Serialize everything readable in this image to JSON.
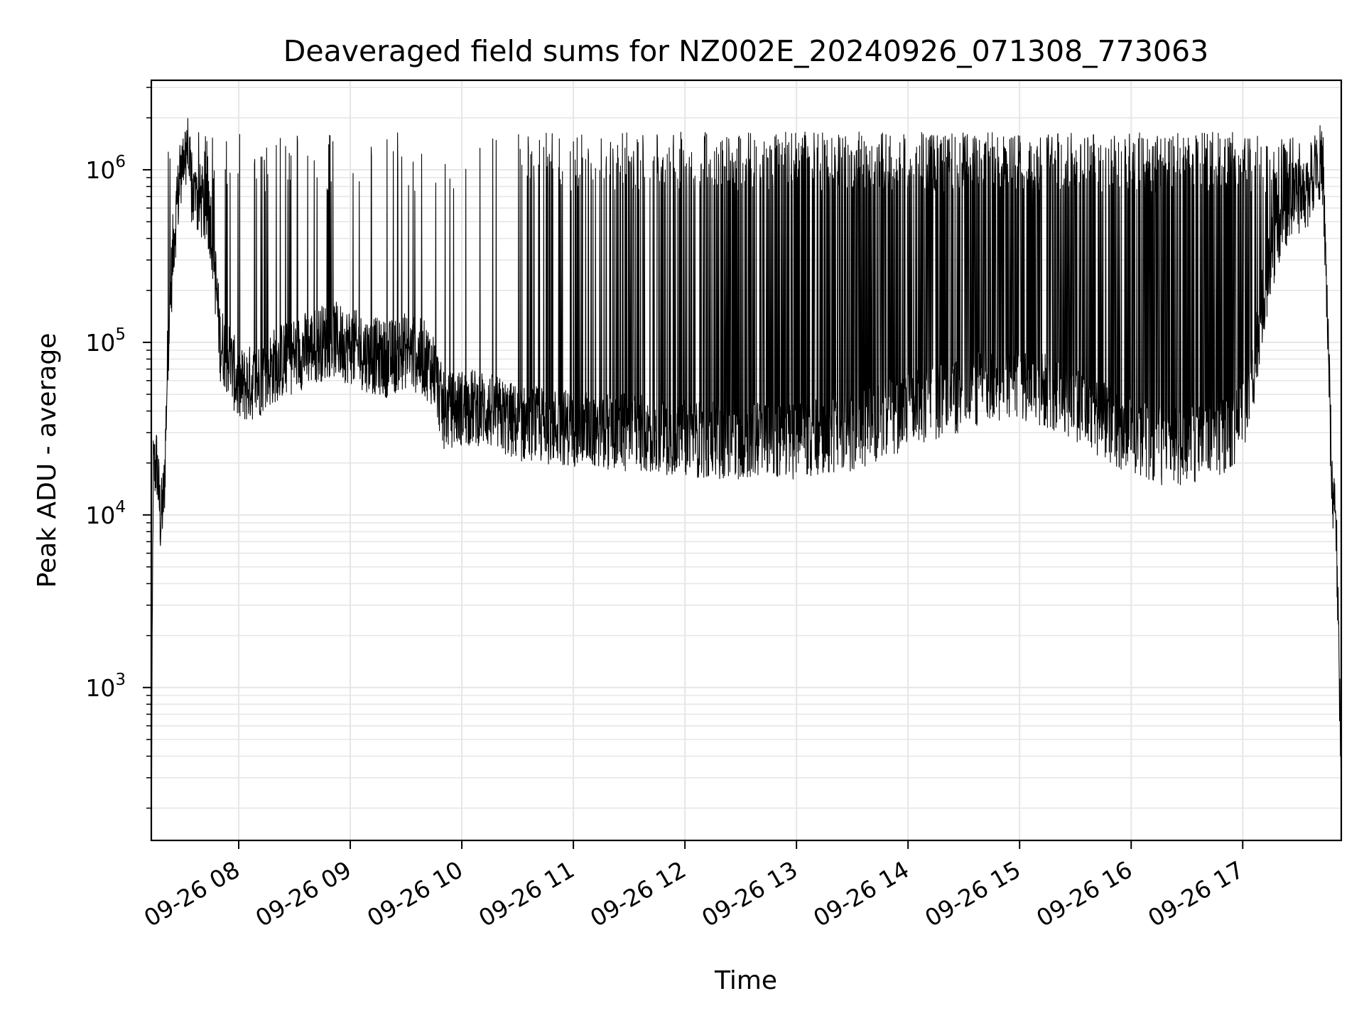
{
  "chart_data": {
    "type": "line",
    "title": "Deaveraged field sums for NZ002E_20240926_071308_773063",
    "xlabel": "Time",
    "ylabel": "Peak ADU - average",
    "yscale": "log",
    "ylim": [
      130,
      3300000
    ],
    "xlim": [
      "09-26 07:13",
      "09-26 17:53"
    ],
    "grid": true,
    "line_color": "#000000",
    "grid_color": "#e6e6e6",
    "x_ticks": [
      "09-26 08",
      "09-26 09",
      "09-26 10",
      "09-26 11",
      "09-26 12",
      "09-26 13",
      "09-26 14",
      "09-26 15",
      "09-26 16",
      "09-26 17"
    ],
    "y_ticks": [
      {
        "base": "10",
        "exp": "3",
        "value": 1000
      },
      {
        "base": "10",
        "exp": "4",
        "value": 10000
      },
      {
        "base": "10",
        "exp": "5",
        "value": 100000
      },
      {
        "base": "10",
        "exp": "6",
        "value": 1000000
      }
    ],
    "series": [
      {
        "baseline": [
          [
            "07:13",
            130
          ],
          [
            "07:14",
            18000
          ],
          [
            "07:16",
            20000
          ],
          [
            "07:18",
            9000
          ],
          [
            "07:20",
            14000
          ],
          [
            "07:22",
            100000
          ],
          [
            "07:25",
            400000
          ],
          [
            "07:28",
            800000
          ],
          [
            "07:32",
            1500000
          ],
          [
            "07:35",
            700000
          ],
          [
            "07:40",
            650000
          ],
          [
            "07:45",
            500000
          ],
          [
            "07:48",
            200000
          ],
          [
            "07:50",
            100000
          ],
          [
            "07:55",
            80000
          ],
          [
            "08:00",
            55000
          ],
          [
            "08:10",
            60000
          ],
          [
            "08:20",
            75000
          ],
          [
            "08:30",
            85000
          ],
          [
            "08:40",
            95000
          ],
          [
            "08:50",
            105000
          ],
          [
            "09:00",
            95000
          ],
          [
            "09:10",
            85000
          ],
          [
            "09:20",
            80000
          ],
          [
            "09:30",
            90000
          ],
          [
            "09:40",
            80000
          ],
          [
            "09:45",
            70000
          ],
          [
            "09:50",
            40000
          ],
          [
            "10:00",
            42000
          ],
          [
            "10:10",
            42000
          ],
          [
            "10:20",
            38000
          ],
          [
            "10:30",
            34000
          ],
          [
            "10:45",
            33000
          ],
          [
            "11:00",
            32000
          ],
          [
            "11:15",
            31000
          ],
          [
            "11:30",
            30000
          ],
          [
            "11:45",
            29000
          ],
          [
            "12:00",
            28000
          ],
          [
            "12:15",
            27000
          ],
          [
            "12:30",
            27000
          ],
          [
            "12:45",
            27000
          ],
          [
            "13:00",
            27000
          ],
          [
            "13:15",
            28000
          ],
          [
            "13:30",
            30000
          ],
          [
            "13:45",
            35000
          ],
          [
            "14:00",
            40000
          ],
          [
            "14:15",
            45000
          ],
          [
            "14:30",
            50000
          ],
          [
            "14:45",
            60000
          ],
          [
            "15:00",
            58000
          ],
          [
            "15:15",
            52000
          ],
          [
            "15:30",
            45000
          ],
          [
            "15:45",
            35000
          ],
          [
            "16:00",
            28000
          ],
          [
            "16:15",
            25000
          ],
          [
            "16:30",
            25000
          ],
          [
            "16:45",
            27000
          ],
          [
            "17:00",
            35000
          ],
          [
            "17:05",
            60000
          ],
          [
            "17:10",
            150000
          ],
          [
            "17:15",
            300000
          ],
          [
            "17:20",
            500000
          ],
          [
            "17:25",
            650000
          ],
          [
            "17:30",
            700000
          ],
          [
            "17:36",
            800000
          ],
          [
            "17:40",
            1200000
          ],
          [
            "17:43",
            1000000
          ],
          [
            "17:46",
            100000
          ],
          [
            "17:48",
            14000
          ],
          [
            "17:50",
            12000
          ],
          [
            "17:52",
            1000
          ],
          [
            "17:53",
            400
          ]
        ],
        "spike_density": [
          [
            "07:20",
            0.3
          ],
          [
            "07:55",
            0.15
          ],
          [
            "09:00",
            0.12
          ],
          [
            "09:40",
            0.1
          ],
          [
            "10:20",
            0.05
          ],
          [
            "10:40",
            0.35
          ],
          [
            "11:30",
            0.5
          ],
          [
            "12:30",
            0.6
          ],
          [
            "13:30",
            0.7
          ],
          [
            "14:45",
            0.85
          ],
          [
            "15:30",
            0.8
          ],
          [
            "16:30",
            0.75
          ],
          [
            "17:10",
            0.6
          ],
          [
            "17:40",
            0.2
          ]
        ],
        "spike_level": 1200000,
        "spike_floor": 15000
      }
    ]
  }
}
